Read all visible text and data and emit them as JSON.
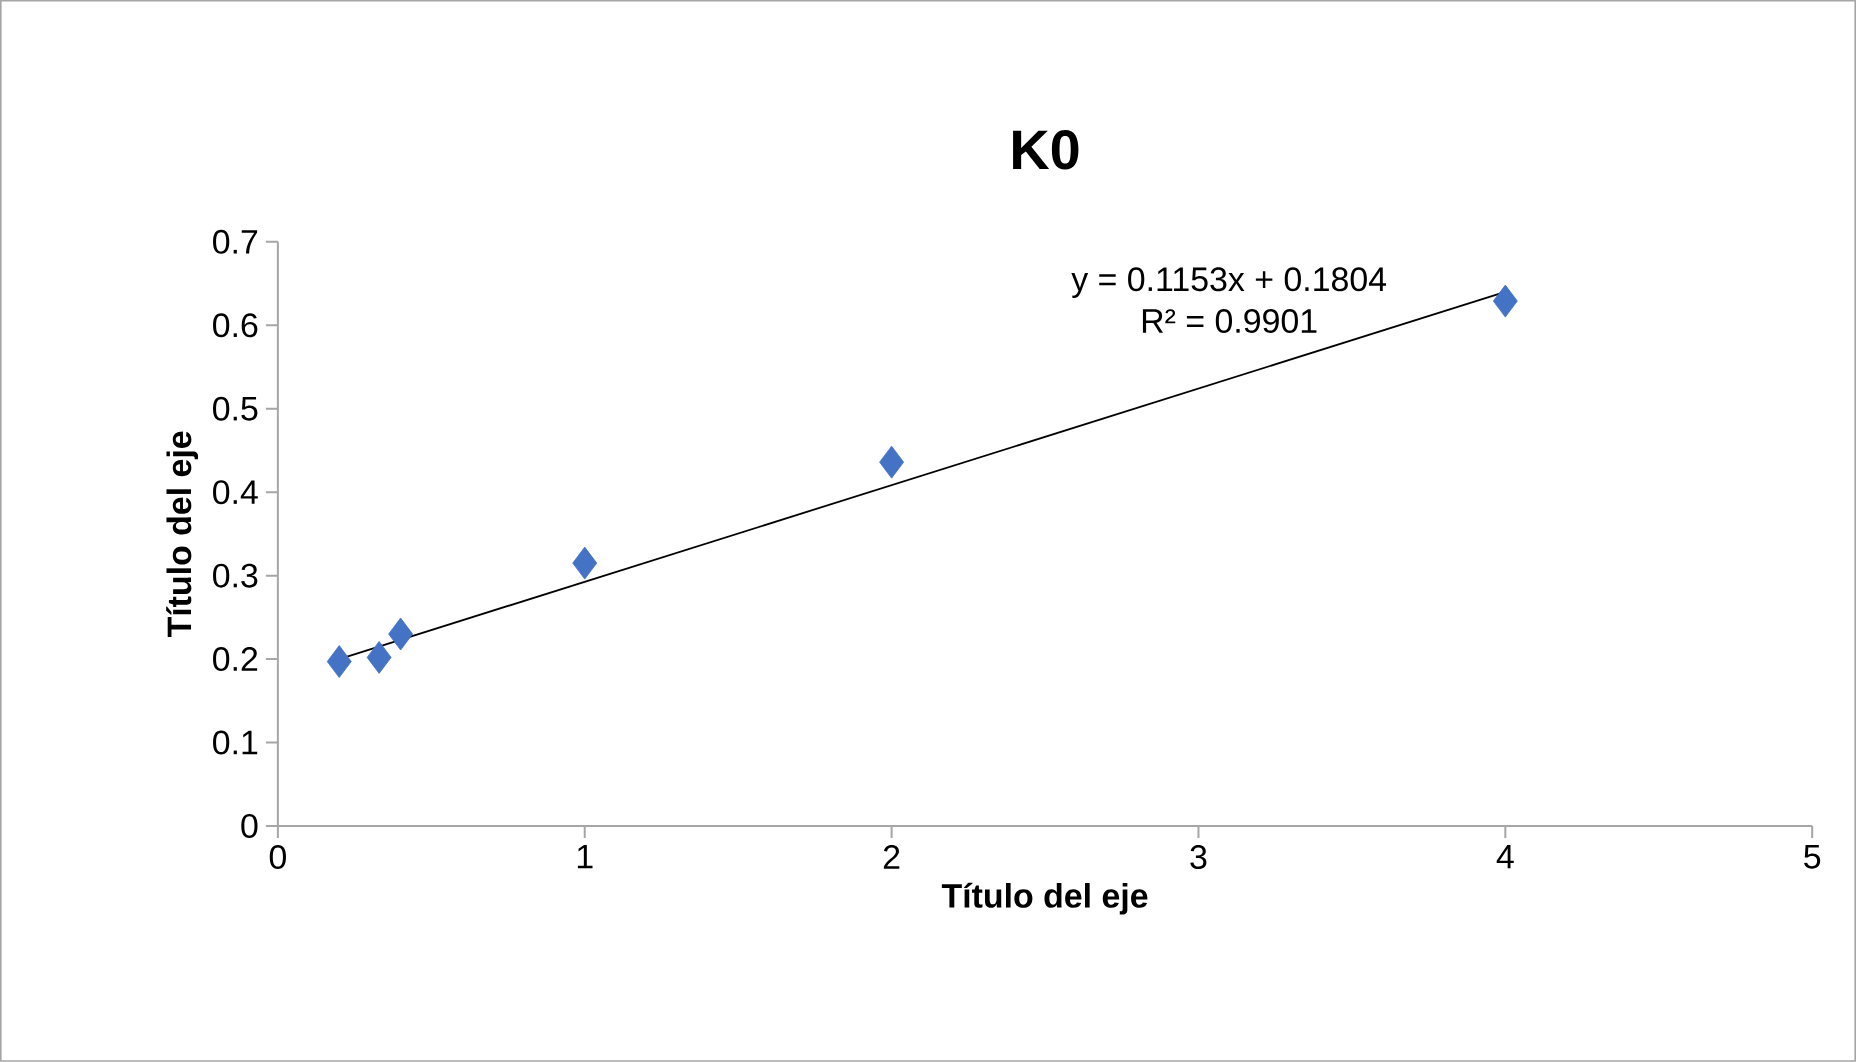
{
  "chart_data": {
    "type": "scatter",
    "title": "K0",
    "xlabel": "Título del eje",
    "ylabel": "Título del eje",
    "annotations": [
      "y = 0.1153x + 0.1804",
      "R² = 0.9901"
    ],
    "series": [
      {
        "color": "#4472c4",
        "marker": "diamond",
        "x": [
          0.2,
          0.33,
          0.4,
          1,
          2,
          4
        ],
        "values": [
          0.197,
          0.202,
          0.23,
          0.315,
          0.436,
          0.629
        ]
      },
      {
        "type": "line",
        "color": "#000000",
        "marker": "none",
        "line_style": "solid",
        "x": [
          0.2,
          4
        ],
        "values": [
          0.2,
          0.64
        ]
      }
    ],
    "xlim": [
      0,
      5
    ],
    "ylim": [
      0,
      0.7
    ],
    "xticks": [
      0,
      1,
      2,
      3,
      4,
      5
    ],
    "yticks": [
      0,
      0.1,
      0.2,
      0.3,
      0.4,
      0.5,
      0.6,
      0.7
    ],
    "grid": false
  }
}
